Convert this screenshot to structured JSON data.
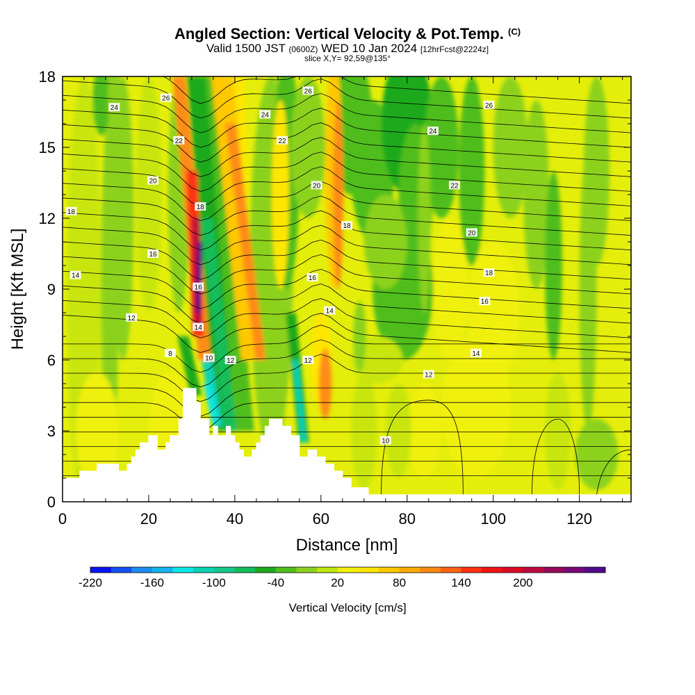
{
  "header": {
    "title": "Angled Section: Vertical Velocity & Pot.Temp.",
    "title_tag": "(C)",
    "valid_prefix": "Valid 1500 JST",
    "valid_utc": "(0600Z)",
    "valid_date": "WED 10 Jan 2024",
    "forecast": "[12hrFcst@2224z]",
    "slice": "slice X,Y= 92,59@135°"
  },
  "colorbar": {
    "label": "Vertical Velocity [cm/s]",
    "tick_labels": [
      "-220",
      "-160",
      "-100",
      "-40",
      "20",
      "80",
      "140",
      "200"
    ],
    "colors": [
      "#0a14f0",
      "#1450f5",
      "#1e8cf0",
      "#14b4f0",
      "#0ae6e6",
      "#0ad2b4",
      "#14c88c",
      "#14be5a",
      "#1eaa1e",
      "#50be1e",
      "#8cd21e",
      "#bee60a",
      "#f0f00a",
      "#ffe600",
      "#ffc800",
      "#ffaa00",
      "#ff8c14",
      "#ff6414",
      "#ff3214",
      "#f01414",
      "#dc0a28",
      "#be0a3c",
      "#960a5a",
      "#780a78",
      "#500a8c"
    ]
  },
  "chart_data": {
    "type": "heatmap",
    "title": "Angled Section: Vertical Velocity & Pot.Temp.",
    "xlabel": "Distance [nm]",
    "ylabel": "Height [Kft MSL]",
    "xlim": [
      0,
      132
    ],
    "ylim": [
      0,
      18
    ],
    "x_ticks": [
      0,
      20,
      40,
      60,
      80,
      100,
      120
    ],
    "y_ticks": [
      0,
      3,
      6,
      9,
      12,
      15,
      18
    ],
    "x_tick_labels": [
      "0",
      "20",
      "40",
      "60",
      "80",
      "100",
      "120"
    ],
    "y_tick_labels": [
      "0",
      "3",
      "6",
      "9",
      "12",
      "15",
      "18"
    ],
    "colorbar_range": [
      -220,
      240
    ],
    "terrain_kft": [
      [
        0,
        1
      ],
      [
        4,
        1
      ],
      [
        4,
        1.3
      ],
      [
        8,
        1.3
      ],
      [
        8,
        1.6
      ],
      [
        13,
        1.6
      ],
      [
        13,
        1.3
      ],
      [
        15,
        1.3
      ],
      [
        15,
        1.6
      ],
      [
        16,
        1.6
      ],
      [
        16,
        1.9
      ],
      [
        17,
        1.9
      ],
      [
        17,
        2.2
      ],
      [
        18,
        2.2
      ],
      [
        18,
        2.5
      ],
      [
        20,
        2.5
      ],
      [
        20,
        2.8
      ],
      [
        22,
        2.8
      ],
      [
        22,
        2.2
      ],
      [
        24,
        2.2
      ],
      [
        24,
        2.5
      ],
      [
        25,
        2.5
      ],
      [
        25,
        2.8
      ],
      [
        27,
        2.8
      ],
      [
        27,
        3.5
      ],
      [
        28,
        3.5
      ],
      [
        28,
        4.8
      ],
      [
        31,
        4.8
      ],
      [
        31,
        4.2
      ],
      [
        32,
        4.2
      ],
      [
        32,
        3.5
      ],
      [
        34,
        3.5
      ],
      [
        34,
        2.8
      ],
      [
        35,
        2.8
      ],
      [
        35,
        3.2
      ],
      [
        36,
        3.2
      ],
      [
        36,
        2.8
      ],
      [
        38,
        2.8
      ],
      [
        38,
        3.2
      ],
      [
        39,
        3.2
      ],
      [
        39,
        2.8
      ],
      [
        40,
        2.8
      ],
      [
        40,
        2.5
      ],
      [
        41,
        2.5
      ],
      [
        41,
        2.2
      ],
      [
        42,
        2.2
      ],
      [
        42,
        1.9
      ],
      [
        44,
        1.9
      ],
      [
        44,
        2.2
      ],
      [
        45,
        2.2
      ],
      [
        45,
        2.5
      ],
      [
        46,
        2.5
      ],
      [
        46,
        2.8
      ],
      [
        47,
        2.8
      ],
      [
        47,
        3.2
      ],
      [
        48,
        3.2
      ],
      [
        48,
        3.5
      ],
      [
        51,
        3.5
      ],
      [
        51,
        3.2
      ],
      [
        53,
        3.2
      ],
      [
        53,
        2.8
      ],
      [
        55,
        2.8
      ],
      [
        55,
        1.9
      ],
      [
        57,
        1.9
      ],
      [
        57,
        2.2
      ],
      [
        59,
        2.2
      ],
      [
        59,
        1.9
      ],
      [
        61,
        1.9
      ],
      [
        61,
        1.6
      ],
      [
        63,
        1.6
      ],
      [
        63,
        1.3
      ],
      [
        65,
        1.3
      ],
      [
        65,
        1.0
      ],
      [
        67,
        1.0
      ],
      [
        67,
        0.6
      ],
      [
        71,
        0.6
      ],
      [
        71,
        0.3
      ],
      [
        90,
        0.3
      ],
      [
        132,
        0.3
      ]
    ],
    "contour_label_values": [
      "8",
      "10",
      "12",
      "14",
      "16",
      "18",
      "20",
      "22",
      "24",
      "26"
    ],
    "features": {
      "updraft_max_cm_s": 200,
      "updraft_location_nm": [
        31,
        33
      ],
      "downdraft_min_cm_s": -120,
      "downdraft_location_nm": [
        33,
        37
      ]
    }
  },
  "contour_labels": [
    {
      "text": "26",
      "x": 24,
      "y": 17.1
    },
    {
      "text": "24",
      "x": 12,
      "y": 16.7
    },
    {
      "text": "22",
      "x": 27,
      "y": 15.3
    },
    {
      "text": "20",
      "x": 21,
      "y": 13.6
    },
    {
      "text": "18",
      "x": 2,
      "y": 12.3
    },
    {
      "text": "16",
      "x": 21,
      "y": 10.5
    },
    {
      "text": "14",
      "x": 3,
      "y": 9.6
    },
    {
      "text": "12",
      "x": 16,
      "y": 7.8
    },
    {
      "text": "8",
      "x": 25,
      "y": 6.3
    },
    {
      "text": "18",
      "x": 32,
      "y": 12.5
    },
    {
      "text": "16",
      "x": 31.5,
      "y": 9.1
    },
    {
      "text": "14",
      "x": 31.5,
      "y": 7.4
    },
    {
      "text": "10",
      "x": 34,
      "y": 6.1
    },
    {
      "text": "12",
      "x": 39,
      "y": 6.0
    },
    {
      "text": "26",
      "x": 57,
      "y": 17.4
    },
    {
      "text": "24",
      "x": 47,
      "y": 16.4
    },
    {
      "text": "22",
      "x": 51,
      "y": 15.3
    },
    {
      "text": "20",
      "x": 59,
      "y": 13.4
    },
    {
      "text": "18",
      "x": 66,
      "y": 11.7
    },
    {
      "text": "16",
      "x": 58,
      "y": 9.5
    },
    {
      "text": "14",
      "x": 62,
      "y": 8.1
    },
    {
      "text": "12",
      "x": 57,
      "y": 6.0
    },
    {
      "text": "26",
      "x": 99,
      "y": 16.8
    },
    {
      "text": "24",
      "x": 86,
      "y": 15.7
    },
    {
      "text": "22",
      "x": 91,
      "y": 13.4
    },
    {
      "text": "20",
      "x": 95,
      "y": 11.4
    },
    {
      "text": "18",
      "x": 99,
      "y": 9.7
    },
    {
      "text": "16",
      "x": 98,
      "y": 8.5
    },
    {
      "text": "14",
      "x": 96,
      "y": 6.3
    },
    {
      "text": "12",
      "x": 85,
      "y": 5.4
    },
    {
      "text": "10",
      "x": 75,
      "y": 2.6
    }
  ]
}
